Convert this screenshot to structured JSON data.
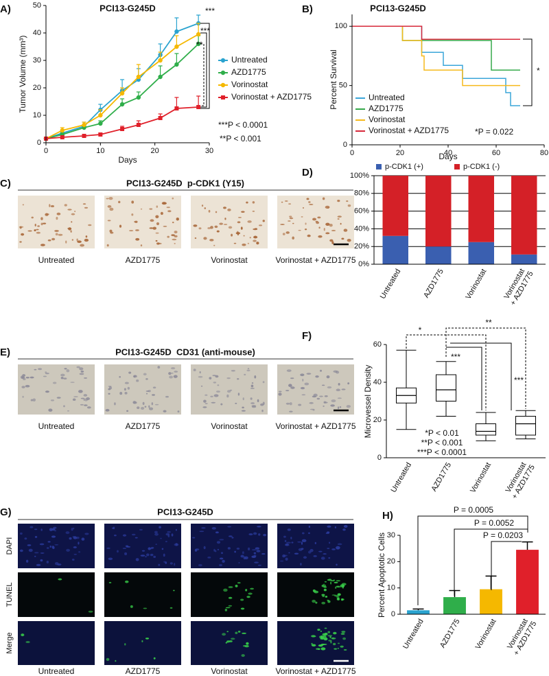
{
  "chart_data": [
    {
      "type": "line",
      "panel": "A)",
      "title": "PCI13-G245D",
      "x_label": "Days",
      "y_label": "Tumor Volume (mm³)",
      "x": [
        0,
        3,
        7,
        10,
        14,
        17,
        21,
        24,
        28
      ],
      "xlim": [
        0,
        30
      ],
      "xticks": [
        0,
        10,
        20,
        30
      ],
      "ylim": [
        0,
        50
      ],
      "yticks": [
        0,
        10,
        20,
        30,
        40,
        50
      ],
      "markers": true,
      "series": [
        {
          "name": "Untreated",
          "color": "#2aa3cf",
          "marker": "circle",
          "values": [
            1.5,
            3.5,
            6,
            12,
            19,
            23,
            32,
            40.5,
            43.5
          ],
          "errors": [
            0.5,
            1,
            1.5,
            2,
            4,
            4,
            4,
            5,
            3
          ]
        },
        {
          "name": "AZD1775",
          "color": "#2fae4a",
          "marker": "circle",
          "values": [
            1.5,
            3,
            5.5,
            7,
            14,
            16.5,
            24,
            28.5,
            36
          ],
          "errors": [
            0.5,
            0.5,
            1,
            1,
            2,
            2,
            4,
            4,
            3
          ]
        },
        {
          "name": "Vorinostat",
          "color": "#f5b800",
          "marker": "circle",
          "values": [
            1.5,
            4.5,
            6.5,
            10,
            18,
            24,
            30,
            35,
            39.5
          ],
          "errors": [
            0.5,
            1,
            1,
            2,
            2,
            4.5,
            3,
            4,
            4
          ]
        },
        {
          "name": "Vorinostat + AZD1775",
          "color": "#e0202a",
          "marker": "square",
          "values": [
            1.5,
            2,
            2.5,
            3,
            5,
            6.5,
            9,
            12.5,
            13
          ],
          "errors": [
            0.5,
            0.5,
            0.5,
            0.5,
            1,
            1.5,
            1.5,
            4,
            4
          ]
        }
      ],
      "annotations": [
        "***",
        "***",
        "**",
        "***P < 0.0001",
        "**P < 0.001"
      ]
    },
    {
      "type": "line",
      "panel": "B)",
      "title": "PCI13-G245D",
      "x_label": "Days",
      "y_label": "Percent Survival",
      "xlim": [
        0,
        80
      ],
      "xticks": [
        0,
        20,
        40,
        60,
        80
      ],
      "ylim": [
        0,
        110
      ],
      "yticks": [
        0,
        50,
        100
      ],
      "markers": false,
      "series": [
        {
          "name": "Untreated",
          "color": "#3aa6d9",
          "x": [
            0,
            29,
            29,
            38,
            38,
            46,
            46,
            64,
            64,
            66,
            66,
            70
          ],
          "values": [
            100,
            100,
            78,
            78,
            67,
            67,
            56,
            56,
            44,
            44,
            33,
            33
          ]
        },
        {
          "name": "AZD1775",
          "color": "#35a94a",
          "x": [
            0,
            21,
            21,
            58,
            58,
            70
          ],
          "values": [
            100,
            100,
            88,
            88,
            63,
            63
          ]
        },
        {
          "name": "Vorinostat",
          "color": "#f6b91a",
          "x": [
            0,
            21,
            21,
            29,
            29,
            30,
            30,
            46,
            46,
            70
          ],
          "values": [
            100,
            100,
            88,
            88,
            75,
            75,
            63,
            63,
            50,
            50
          ]
        },
        {
          "name": "Vorinostat + AZD1775",
          "color": "#d7283a",
          "x": [
            0,
            29,
            29,
            70
          ],
          "values": [
            100,
            100,
            89,
            89
          ]
        }
      ],
      "annotations": [
        "*",
        "*P = 0.022"
      ]
    },
    {
      "type": "bar",
      "panel": "D)",
      "stacked": true,
      "grid": true,
      "categories": [
        "Untreated",
        "AZD1775",
        "Vorinostat",
        "Vorinostat + AZD1775"
      ],
      "ylim": [
        0,
        100
      ],
      "yticks": [
        {
          "value": 0,
          "label": "0%"
        },
        {
          "value": 20,
          "label": "20%"
        },
        {
          "value": 40,
          "label": "40%"
        },
        {
          "value": 60,
          "label": "60%"
        },
        {
          "value": 80,
          "label": "80%"
        },
        {
          "value": 100,
          "label": "100%"
        }
      ],
      "legend": "top",
      "series": [
        {
          "name": "p-CDK1 (+)",
          "color": "#3a5fb0",
          "values": [
            32,
            20,
            25,
            11
          ]
        },
        {
          "name": "p-CDK1 (-)",
          "color": "#d42027",
          "values": [
            68,
            80,
            75,
            89
          ]
        }
      ]
    },
    {
      "type": "box",
      "panel": "F)",
      "y_label": "Microvessel Density",
      "categories": [
        "Untreated",
        "AZD1775",
        "Vorinostat",
        "Vorinostat + AZD1775"
      ],
      "min": [
        15,
        22,
        9,
        10
      ],
      "q1": [
        29,
        30,
        12,
        12
      ],
      "median": [
        33,
        36,
        14,
        18
      ],
      "q3": [
        37,
        44,
        18,
        22
      ],
      "max": [
        57,
        51,
        24,
        25
      ],
      "ylim": [
        0,
        60
      ],
      "yticks": [
        0,
        20,
        40,
        60
      ],
      "annotations": [
        "*",
        "**",
        "***",
        "***",
        "*P < 0.01",
        "**P < 0.001",
        "***P < 0.0001"
      ]
    },
    {
      "type": "bar",
      "panel": "H)",
      "y_label": "Percent Apoptotic Cells",
      "categories": [
        "Untreated",
        "AZD1775",
        "Vorinostat",
        "Vorinostat + AZD1775"
      ],
      "values": [
        1.5,
        6.5,
        9.5,
        24.5
      ],
      "errors": [
        0.5,
        2.5,
        5,
        3
      ],
      "colors": [
        "#2aa3cf",
        "#2fae4a",
        "#f5b800",
        "#e0202a"
      ],
      "ylim": [
        0,
        30
      ],
      "yticks": [
        0,
        10,
        20,
        30
      ],
      "annotations": [
        "P = 0.0005",
        "P = 0.0052",
        "P = 0.0203"
      ]
    }
  ],
  "image_panels": [
    {
      "label": "C)",
      "title": "PCI13-G245D  p-CDK1 (Y15)",
      "captions": [
        "Untreated",
        "AZD1775",
        "Vorinostat",
        "Vorinostat + AZD1775"
      ]
    },
    {
      "label": "E)",
      "title": "PCI13-G245D  CD31 (anti-mouse)",
      "captions": [
        "Untreated",
        "AZD1775",
        "Vorinostat",
        "Vorinostat + AZD1775"
      ]
    },
    {
      "label": "G)",
      "title": "PCI13-G245D",
      "row_labels": [
        "DAPI",
        "TUNEL",
        "Merge"
      ],
      "captions": [
        "Untreated",
        "AZD1775",
        "Vorinostat",
        "Vorinostat + AZD1775"
      ]
    }
  ]
}
